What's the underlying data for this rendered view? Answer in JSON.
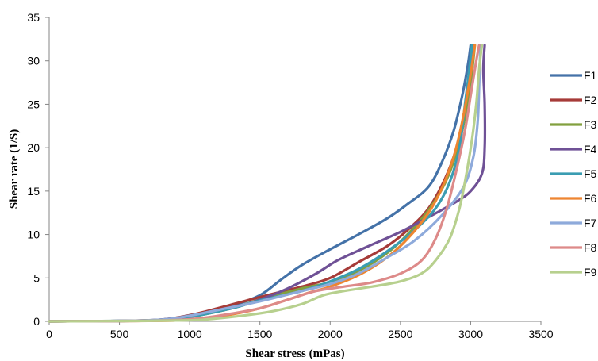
{
  "chart_data": {
    "type": "line",
    "xlabel": "Shear stress (mPas)",
    "ylabel": "Shear rate (1/S)",
    "xlim": [
      0,
      3500
    ],
    "ylim": [
      0,
      35
    ],
    "xticks": [
      0,
      500,
      1000,
      1500,
      2000,
      2500,
      3000,
      3500
    ],
    "yticks": [
      0,
      5,
      10,
      15,
      20,
      25,
      30,
      35
    ],
    "grid": false,
    "legend_position": "right",
    "series": [
      {
        "name": "F1",
        "color": "#4472a8",
        "points": [
          [
            0,
            0
          ],
          [
            500,
            0.05
          ],
          [
            800,
            0.2
          ],
          [
            1000,
            0.7
          ],
          [
            1300,
            1.8
          ],
          [
            1500,
            3
          ],
          [
            1650,
            4.8
          ],
          [
            1800,
            6.5
          ],
          [
            2000,
            8.3
          ],
          [
            2200,
            10
          ],
          [
            2400,
            11.8
          ],
          [
            2550,
            13.5
          ],
          [
            2700,
            15.5
          ],
          [
            2800,
            18.5
          ],
          [
            2880,
            22
          ],
          [
            2940,
            26
          ],
          [
            2980,
            29.5
          ],
          [
            3000,
            31.8
          ]
        ]
      },
      {
        "name": "F2",
        "color": "#a63b38",
        "points": [
          [
            0,
            0
          ],
          [
            500,
            0.05
          ],
          [
            800,
            0.2
          ],
          [
            1000,
            0.7
          ],
          [
            1200,
            1.5
          ],
          [
            1500,
            2.8
          ],
          [
            1800,
            4
          ],
          [
            2000,
            5
          ],
          [
            2200,
            6.8
          ],
          [
            2400,
            8.6
          ],
          [
            2550,
            10.5
          ],
          [
            2700,
            13
          ],
          [
            2820,
            16.5
          ],
          [
            2900,
            20
          ],
          [
            2960,
            24
          ],
          [
            3000,
            28
          ],
          [
            3020,
            31.8
          ]
        ]
      },
      {
        "name": "F3",
        "color": "#82a03f",
        "points": [
          [
            0,
            0
          ],
          [
            500,
            0.05
          ],
          [
            800,
            0.15
          ],
          [
            1000,
            0.5
          ],
          [
            1300,
            1.5
          ],
          [
            1500,
            2.5
          ],
          [
            1800,
            3.8
          ],
          [
            2000,
            4.5
          ],
          [
            2200,
            5.8
          ],
          [
            2400,
            7.8
          ],
          [
            2550,
            10
          ],
          [
            2700,
            12.8
          ],
          [
            2820,
            16
          ],
          [
            2900,
            19.5
          ],
          [
            2960,
            23.5
          ],
          [
            3000,
            27.5
          ],
          [
            3030,
            31.8
          ]
        ]
      },
      {
        "name": "F4",
        "color": "#6f5196",
        "points": [
          [
            0,
            0
          ],
          [
            500,
            0.05
          ],
          [
            800,
            0.2
          ],
          [
            1000,
            0.6
          ],
          [
            1300,
            1.5
          ],
          [
            1500,
            2.5
          ],
          [
            1700,
            3.8
          ],
          [
            1900,
            5.5
          ],
          [
            2050,
            7
          ],
          [
            2250,
            8.5
          ],
          [
            2500,
            10.3
          ],
          [
            2700,
            12
          ],
          [
            2900,
            13.8
          ],
          [
            3000,
            15
          ],
          [
            3080,
            17
          ],
          [
            3100,
            20
          ],
          [
            3100,
            25
          ],
          [
            3090,
            29
          ],
          [
            3100,
            31.8
          ]
        ]
      },
      {
        "name": "F5",
        "color": "#3a9db2",
        "points": [
          [
            0,
            0
          ],
          [
            500,
            0.05
          ],
          [
            800,
            0.15
          ],
          [
            1000,
            0.5
          ],
          [
            1300,
            1.5
          ],
          [
            1500,
            2.4
          ],
          [
            1800,
            3.5
          ],
          [
            2000,
            4.6
          ],
          [
            2200,
            6
          ],
          [
            2400,
            8
          ],
          [
            2600,
            10.5
          ],
          [
            2750,
            13
          ],
          [
            2850,
            16
          ],
          [
            2920,
            20
          ],
          [
            2960,
            25
          ],
          [
            2990,
            29
          ],
          [
            3010,
            31.8
          ]
        ]
      },
      {
        "name": "F6",
        "color": "#ee8530",
        "points": [
          [
            0,
            0
          ],
          [
            600,
            0.05
          ],
          [
            900,
            0.1
          ],
          [
            1100,
            0.3
          ],
          [
            1300,
            0.8
          ],
          [
            1500,
            1.5
          ],
          [
            1700,
            2.5
          ],
          [
            1850,
            3.3
          ],
          [
            2000,
            4
          ],
          [
            2200,
            5.3
          ],
          [
            2400,
            7.3
          ],
          [
            2550,
            9.5
          ],
          [
            2700,
            12.5
          ],
          [
            2800,
            15.5
          ],
          [
            2880,
            19
          ],
          [
            2940,
            23
          ],
          [
            2990,
            27.5
          ],
          [
            3030,
            31.8
          ]
        ]
      },
      {
        "name": "F7",
        "color": "#8eaadb",
        "points": [
          [
            0,
            0
          ],
          [
            500,
            0.05
          ],
          [
            800,
            0.2
          ],
          [
            950,
            0.5
          ],
          [
            1200,
            1.3
          ],
          [
            1500,
            2.3
          ],
          [
            1800,
            3.5
          ],
          [
            2000,
            4.3
          ],
          [
            2200,
            5.5
          ],
          [
            2400,
            7.3
          ],
          [
            2600,
            9.3
          ],
          [
            2800,
            12.3
          ],
          [
            2950,
            15.5
          ],
          [
            3020,
            19
          ],
          [
            3050,
            23
          ],
          [
            3060,
            27
          ],
          [
            3070,
            31.8
          ]
        ]
      },
      {
        "name": "F8",
        "color": "#dd8a89",
        "points": [
          [
            0,
            0
          ],
          [
            600,
            0.05
          ],
          [
            900,
            0.15
          ],
          [
            1100,
            0.4
          ],
          [
            1300,
            0.9
          ],
          [
            1500,
            1.5
          ],
          [
            1700,
            2.5
          ],
          [
            1900,
            3.5
          ],
          [
            2100,
            4
          ],
          [
            2300,
            4.5
          ],
          [
            2500,
            5.5
          ],
          [
            2650,
            7
          ],
          [
            2750,
            9.5
          ],
          [
            2830,
            13
          ],
          [
            2900,
            17.5
          ],
          [
            2960,
            22
          ],
          [
            3000,
            26
          ],
          [
            3040,
            30
          ],
          [
            3060,
            31.8
          ]
        ]
      },
      {
        "name": "F9",
        "color": "#b7d08e",
        "points": [
          [
            0,
            0
          ],
          [
            600,
            0.05
          ],
          [
            900,
            0.1
          ],
          [
            1100,
            0.2
          ],
          [
            1400,
            0.7
          ],
          [
            1600,
            1.2
          ],
          [
            1800,
            2
          ],
          [
            1950,
            3
          ],
          [
            2100,
            3.5
          ],
          [
            2300,
            4
          ],
          [
            2500,
            4.6
          ],
          [
            2650,
            5.5
          ],
          [
            2750,
            7
          ],
          [
            2850,
            9.5
          ],
          [
            2920,
            13
          ],
          [
            2970,
            17
          ],
          [
            3010,
            21
          ],
          [
            3040,
            25
          ],
          [
            3060,
            29
          ],
          [
            3080,
            31.8
          ]
        ]
      }
    ]
  }
}
